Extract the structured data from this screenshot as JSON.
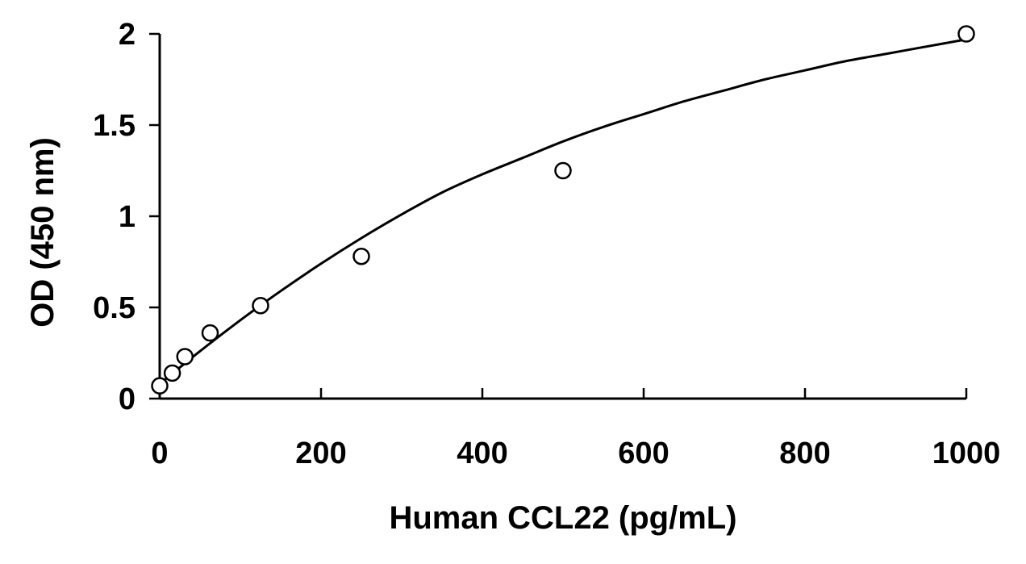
{
  "chart_data": {
    "type": "scatter",
    "xlabel": "Human CCL22 (pg/mL)",
    "ylabel": "OD (450 nm)",
    "xlim": [
      0,
      1000
    ],
    "ylim": [
      0,
      2
    ],
    "xticks": [
      0,
      200,
      400,
      600,
      800,
      1000
    ],
    "yticks": [
      0,
      0.5,
      1,
      1.5,
      2
    ],
    "xtick_labels": [
      "0",
      "200",
      "400",
      "600",
      "800",
      "1000"
    ],
    "ytick_labels": [
      "0",
      "0.5",
      "1",
      "1.5",
      "2"
    ],
    "grid": false,
    "series": [
      {
        "x": [
          0,
          15.6,
          31.25,
          62.5,
          125,
          250,
          500,
          1000
        ],
        "y": [
          0.07,
          0.14,
          0.23,
          0.36,
          0.51,
          0.78,
          1.25,
          2.0
        ],
        "marker": "open-circle",
        "color": "#000000"
      }
    ],
    "fit_curve": {
      "x": [
        0,
        50,
        100,
        150,
        200,
        250,
        300,
        350,
        400,
        450,
        500,
        550,
        600,
        650,
        700,
        750,
        800,
        850,
        900,
        950,
        1000
      ],
      "y": [
        0.08,
        0.26,
        0.43,
        0.59,
        0.74,
        0.88,
        1.01,
        1.13,
        1.23,
        1.32,
        1.41,
        1.49,
        1.56,
        1.63,
        1.69,
        1.75,
        1.8,
        1.85,
        1.89,
        1.93,
        1.97
      ]
    }
  }
}
